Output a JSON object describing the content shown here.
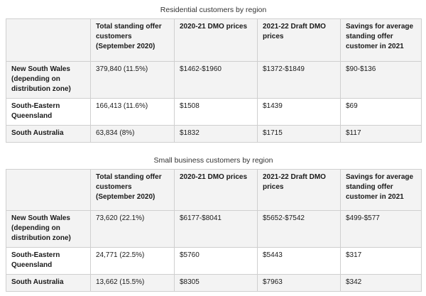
{
  "headers": [
    "",
    "Total standing offer customers (September 2020)",
    "2020-21 DMO prices",
    "2021-22 Draft DMO prices",
    "Savings for average standing offer customer in 2021"
  ],
  "residential": {
    "caption": "Residential customers by region",
    "rows": [
      [
        "New South Wales (depending on distribution zone)",
        "379,840 (11.5%)",
        "$1462-$1960",
        "$1372-$1849",
        "$90-$136"
      ],
      [
        "South-Eastern Queensland",
        "166,413 (11.6%)",
        "$1508",
        "$1439",
        "$69"
      ],
      [
        "South Australia",
        "63,834 (8%)",
        "$1832",
        "$1715",
        "$117"
      ]
    ]
  },
  "business": {
    "caption": "Small business customers by region",
    "rows": [
      [
        "New South Wales (depending on distribution zone)",
        "73,620 (22.1%)",
        "$6177-$8041",
        "$5652-$7542",
        "$499-$577"
      ],
      [
        "South-Eastern Queensland",
        "24,771 (22.5%)",
        "$5760",
        "$5443",
        "$317"
      ],
      [
        "South Australia",
        "13,662 (15.5%)",
        "$8305",
        "$7963",
        "$342"
      ]
    ]
  }
}
